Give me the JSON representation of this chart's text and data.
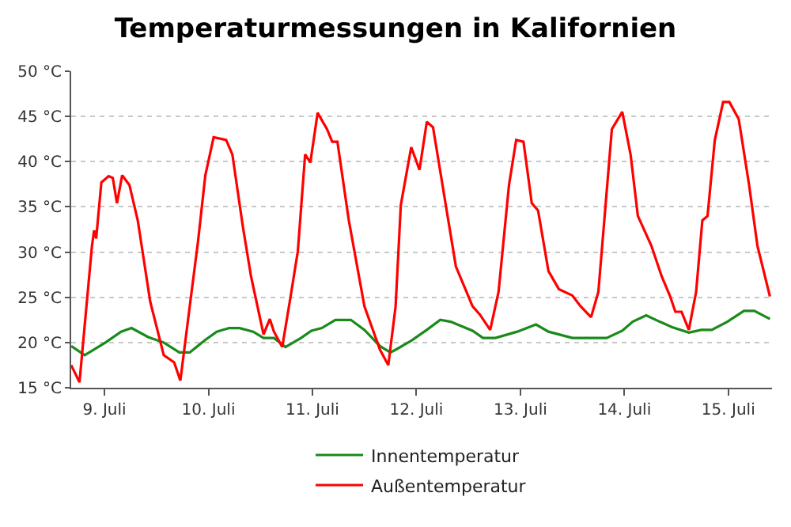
{
  "chart_data": {
    "type": "line",
    "title": "Temperaturmessungen in Kalifornien",
    "xlim": [
      "--07-08T16:19",
      "--07-15T10:05"
    ],
    "xticks": [
      {
        "value": "--07-09",
        "label": "9. Juli"
      },
      {
        "value": "--07-10",
        "label": "10. Juli"
      },
      {
        "value": "--07-11",
        "label": "11. Juli"
      },
      {
        "value": "--07-12",
        "label": "12. Juli"
      },
      {
        "value": "--07-13",
        "label": "13. Juli"
      },
      {
        "value": "--07-14",
        "label": "14. Juli"
      },
      {
        "value": "--07-15",
        "label": "15. Juli"
      }
    ],
    "ylim": [
      15,
      50
    ],
    "yticks": [
      {
        "value": 15,
        "label": "15 °C"
      },
      {
        "value": 20,
        "label": "20 °C"
      },
      {
        "value": 25,
        "label": "25 °C"
      },
      {
        "value": 30,
        "label": "30 °C"
      },
      {
        "value": 35,
        "label": "35 °C"
      },
      {
        "value": 40,
        "label": "40 °C"
      },
      {
        "value": 45,
        "label": "45 °C"
      },
      {
        "value": 50,
        "label": "50 °C"
      }
    ],
    "grid": "y",
    "legend": "bottom",
    "marker": "none",
    "line_style": "solid",
    "series": [
      {
        "name": "Innentemperatur",
        "color": "#1a8a1a",
        "x": [
          "--07-08T16:19",
          "--07-08T19:26",
          "--07-09T00:14",
          "--07-09T03:50",
          "--07-09T06:14",
          "--07-09T10:05",
          "--07-09T13:41",
          "--07-09T17:17",
          "--07-09T19:41",
          "--07-09T23:17",
          "--07-10T01:55",
          "--07-10T04:48",
          "--07-10T07:12",
          "--07-10T10:19",
          "--07-10T12:43",
          "--07-10T15:07",
          "--07-10T17:46",
          "--07-10T21:22",
          "--07-10T23:46",
          "--07-11T02:10",
          "--07-11T05:17",
          "--07-11T08:53",
          "--07-11T12:00",
          "--07-11T15:36",
          "--07-11T18:00",
          "--07-11T19:12",
          "--07-11T22:48",
          "--07-12T02:24",
          "--07-12T05:31",
          "--07-12T07:55",
          "--07-12T12:58",
          "--07-12T15:22",
          "--07-12T18:14",
          "--07-12T23:17",
          "--07-13T03:36",
          "--07-13T06:29",
          "--07-13T12:00",
          "--07-13T19:55",
          "--07-13T23:31",
          "--07-14T01:55",
          "--07-14T05:02",
          "--07-14T08:10",
          "--07-14T11:02",
          "--07-14T14:53",
          "--07-14T17:46",
          "--07-14T20:10",
          "--07-14T23:46",
          "--07-15T03:36",
          "--07-15T06:00",
          "--07-15T09:36"
        ],
        "values": [
          19.6,
          18.6,
          20.0,
          21.2,
          21.6,
          20.6,
          20.0,
          18.9,
          18.9,
          20.3,
          21.2,
          21.6,
          21.6,
          21.2,
          20.5,
          20.5,
          19.5,
          20.5,
          21.3,
          21.6,
          22.5,
          22.5,
          21.4,
          19.6,
          18.9,
          19.2,
          20.2,
          21.4,
          22.5,
          22.3,
          21.3,
          20.5,
          20.5,
          21.2,
          22.0,
          21.2,
          20.5,
          20.5,
          21.3,
          22.3,
          23.0,
          22.3,
          21.7,
          21.1,
          21.4,
          21.4,
          22.3,
          23.5,
          23.5,
          22.6
        ]
      },
      {
        "name": "Außentemperatur",
        "color": "#ff0000",
        "x": [
          "--07-08T16:19",
          "--07-08T18:14",
          "--07-08T21:07",
          "--07-08T21:36",
          "--07-08T22:05",
          "--07-08T23:17",
          "--07-09T00:58",
          "--07-09T01:55",
          "--07-09T02:53",
          "--07-09T04:05",
          "--07-09T05:46",
          "--07-09T07:41",
          "--07-09T10:34",
          "--07-09T13:41",
          "--07-09T16:05",
          "--07-09T17:31",
          "--07-09T19:41",
          "--07-09T21:36",
          "--07-09T23:17",
          "--07-10T01:12",
          "--07-10T04:05",
          "--07-10T05:31",
          "--07-10T07:55",
          "--07-10T09:50",
          "--07-10T12:43",
          "--07-10T14:10",
          "--07-10T15:07",
          "--07-10T17:02",
          "--07-10T18:58",
          "--07-10T20:38",
          "--07-10T22:19",
          "--07-10T23:31",
          "--07-11T01:12",
          "--07-11T03:22",
          "--07-11T04:34",
          "--07-11T05:46",
          "--07-11T08:24",
          "--07-11T12:00",
          "--07-11T15:36",
          "--07-11T17:31",
          "--07-11T19:12",
          "--07-11T20:24",
          "--07-11T22:48",
          "--07-12T00:43",
          "--07-12T02:24",
          "--07-12T03:50",
          "--07-12T06:14",
          "--07-12T09:07",
          "--07-12T12:58",
          "--07-12T14:38",
          "--07-12T17:02",
          "--07-12T18:58",
          "--07-12T21:22",
          "--07-12T23:02",
          "--07-13T00:43",
          "--07-13T02:38",
          "--07-13T04:05",
          "--07-13T06:29",
          "--07-13T08:53",
          "--07-13T12:00",
          "--07-13T13:55",
          "--07-13T16:19",
          "--07-13T18:00",
          "--07-13T21:07",
          "--07-13T23:31",
          "--07-14T01:26",
          "--07-14T03:07",
          "--07-14T06:14",
          "--07-14T08:38",
          "--07-14T10:34",
          "--07-14T11:46",
          "--07-14T13:12",
          "--07-14T14:53",
          "--07-14T16:34",
          "--07-14T18:00",
          "--07-14T19:12",
          "--07-14T20:53",
          "--07-14T22:48",
          "--07-15T00:14",
          "--07-15T02:24",
          "--07-15T04:48",
          "--07-15T06:43",
          "--07-15T09:36"
        ],
        "values": [
          17.5,
          15.6,
          30.7,
          32.4,
          31.5,
          37.7,
          38.4,
          38.2,
          35.4,
          38.5,
          37.4,
          33.5,
          24.5,
          18.6,
          17.8,
          15.8,
          24.0,
          31.2,
          38.5,
          42.7,
          42.4,
          40.8,
          32.9,
          27.3,
          20.9,
          22.6,
          21.2,
          19.5,
          25.1,
          30.1,
          40.8,
          39.9,
          45.4,
          43.6,
          42.2,
          42.2,
          33.5,
          24.0,
          19.2,
          17.5,
          24.0,
          35.2,
          41.6,
          39.1,
          44.4,
          43.8,
          36.8,
          28.4,
          24.0,
          23.1,
          21.4,
          25.6,
          37.4,
          42.4,
          42.2,
          35.4,
          34.6,
          27.9,
          25.9,
          25.2,
          24.0,
          22.8,
          25.6,
          43.6,
          45.5,
          40.8,
          34.0,
          30.7,
          27.3,
          25.1,
          23.4,
          23.4,
          21.4,
          25.6,
          33.5,
          34.0,
          42.4,
          46.6,
          46.6,
          44.7,
          37.4,
          30.7,
          25.1
        ]
      }
    ]
  }
}
